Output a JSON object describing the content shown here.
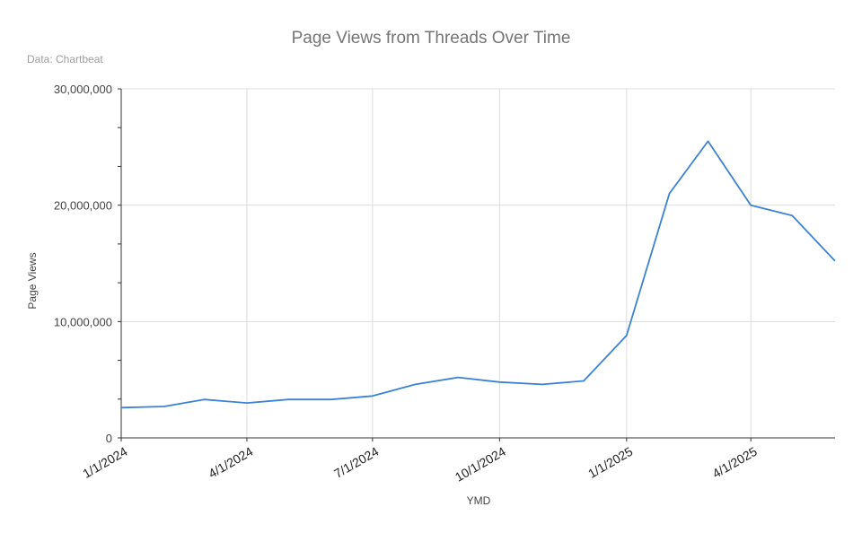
{
  "chart_data": {
    "type": "line",
    "title": "Page Views from Threads Over Time",
    "subtitle": "Data: Chartbeat",
    "xlabel": "YMD",
    "ylabel": "Page Views",
    "ylim": [
      0,
      30000000
    ],
    "yticks": [
      "0",
      "10,000,000",
      "20,000,000",
      "30,000,000"
    ],
    "xlim": [
      "2024-01-01",
      "2025-06-01"
    ],
    "xticks": [
      {
        "date": "2024-01-01",
        "label": "1/1/2024"
      },
      {
        "date": "2024-04-01",
        "label": "4/1/2024"
      },
      {
        "date": "2024-07-01",
        "label": "7/1/2024"
      },
      {
        "date": "2024-10-01",
        "label": "10/1/2024"
      },
      {
        "date": "2025-01-01",
        "label": "1/1/2025"
      },
      {
        "date": "2025-04-01",
        "label": "4/1/2025"
      }
    ],
    "grid": true,
    "color": "#3b82d6",
    "series": [
      {
        "x": [
          "2024-01-01",
          "2024-02-01",
          "2024-03-01",
          "2024-04-01",
          "2024-05-01",
          "2024-06-01",
          "2024-07-01",
          "2024-08-01",
          "2024-09-01",
          "2024-10-01",
          "2024-11-01",
          "2024-12-01",
          "2025-01-01",
          "2025-02-01",
          "2025-03-01",
          "2025-04-01",
          "2025-05-01",
          "2025-06-01"
        ],
        "values": [
          2600000,
          2700000,
          3300000,
          3000000,
          3300000,
          3300000,
          3600000,
          4600000,
          5200000,
          4800000,
          4600000,
          4900000,
          8800000,
          21000000,
          25500000,
          20000000,
          19100000,
          15200000
        ]
      }
    ]
  }
}
